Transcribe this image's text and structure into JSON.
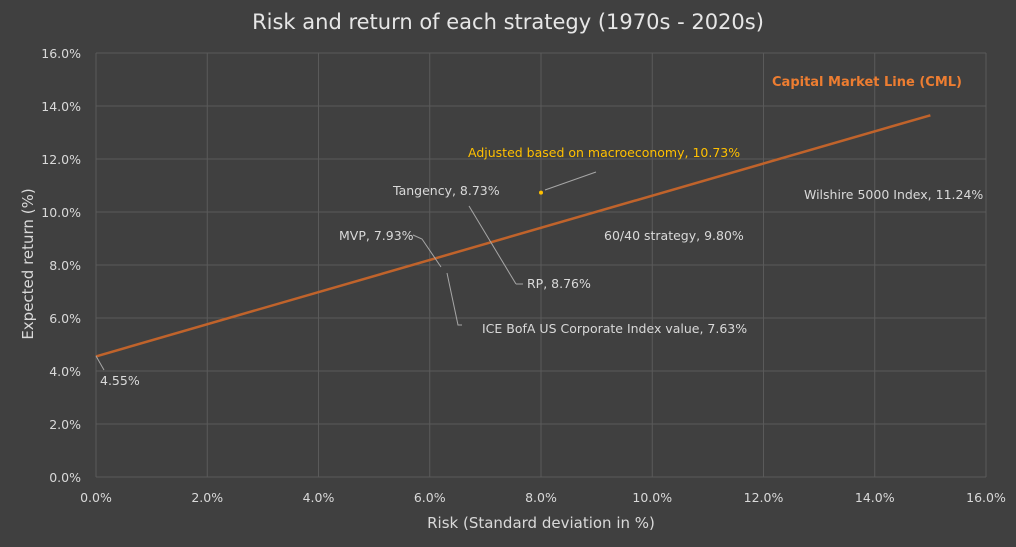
{
  "chart_data": {
    "type": "scatter",
    "title": "Risk and return of each strategy (1970s - 2020s)",
    "xlabel": "Risk (Standard deviation in %)",
    "ylabel": "Expected return (%)",
    "xlim": [
      0,
      16
    ],
    "ylim": [
      0,
      16
    ],
    "x_ticks": [
      "0.0%",
      "2.0%",
      "4.0%",
      "6.0%",
      "8.0%",
      "10.0%",
      "12.0%",
      "14.0%",
      "16.0%"
    ],
    "y_ticks": [
      "0.0%",
      "2.0%",
      "4.0%",
      "6.0%",
      "8.0%",
      "10.0%",
      "12.0%",
      "14.0%",
      "16.0%"
    ],
    "grid": true,
    "line": {
      "name": "Capital Market Line (CML)",
      "color": "#c0632b",
      "label_color": "#ed7d31",
      "x": [
        0,
        15
      ],
      "y": [
        4.55,
        13.65
      ]
    },
    "annotations": [
      {
        "text": "4.55%",
        "x": 0,
        "y": 4.55,
        "color": "#d9d9d9"
      },
      {
        "text": "MVP, 7.93%",
        "x": 6.2,
        "y": 7.93,
        "color": "#d9d9d9"
      },
      {
        "text": "Tangency, 8.73%",
        "x": 7.7,
        "y": 8.73,
        "color": "#d9d9d9"
      },
      {
        "text": "RP, 8.76%",
        "x": 7.6,
        "y": 8.76,
        "color": "#d9d9d9"
      },
      {
        "text": "ICE BofA US Corporate Index value, 7.63%",
        "x": 6.3,
        "y": 7.63,
        "color": "#d9d9d9"
      },
      {
        "text": "60/40 strategy, 9.80%",
        "x": 10.3,
        "y": 9.8,
        "color": "#d9d9d9"
      },
      {
        "text": "Wilshire 5000 Index, 11.24%",
        "x": 15.2,
        "y": 11.24,
        "color": "#d9d9d9"
      },
      {
        "text": "Adjusted based on macroeconomy, 10.73%",
        "x": 8.0,
        "y": 10.73,
        "color": "#ffc000"
      }
    ]
  }
}
